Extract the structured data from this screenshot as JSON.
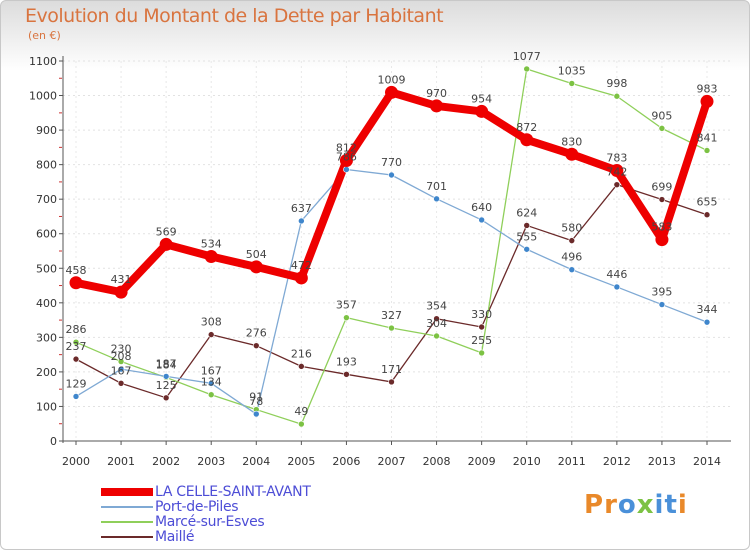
{
  "title": "Evolution du Montant de la Dette par Habitant",
  "unit": "(en €)",
  "logo": {
    "letters": [
      "P",
      "r",
      "o",
      "x",
      "i",
      "t",
      "i"
    ],
    "colors": [
      "#e9892a",
      "#e9892a",
      "#4a90d9",
      "#7cc243",
      "#4a90d9",
      "#4a90d9",
      "#e9892a"
    ]
  },
  "chart_data": {
    "type": "line",
    "title": "Evolution du Montant de la Dette par Habitant",
    "ylabel": "(en €)",
    "xlabel": "",
    "ylim": [
      0,
      1100
    ],
    "yticks": [
      0,
      100,
      200,
      300,
      400,
      500,
      600,
      700,
      800,
      900,
      1000,
      1100
    ],
    "categories": [
      "2000",
      "2001",
      "2002",
      "2003",
      "2004",
      "2005",
      "2006",
      "2007",
      "2008",
      "2009",
      "2010",
      "2011",
      "2012",
      "2013",
      "2014"
    ],
    "series": [
      {
        "name": "Maillé",
        "color": "#6b2a2a",
        "dot": "#6b2a2a",
        "values": [
          237,
          167,
          125,
          308,
          276,
          216,
          193,
          171,
          354,
          330,
          624,
          580,
          742,
          699,
          655
        ]
      },
      {
        "name": "Marcé-sur-Esves",
        "color": "#8fcf5a",
        "dot": "#7cc243",
        "values": [
          286,
          230,
          184,
          134,
          91,
          49,
          357,
          327,
          304,
          255,
          1077,
          1035,
          998,
          905,
          841
        ]
      },
      {
        "name": "Port-de-Piles",
        "color": "#7fa9d4",
        "dot": "#3f86cc",
        "values": [
          129,
          208,
          187,
          167,
          78,
          637,
          786,
          770,
          701,
          640,
          555,
          496,
          446,
          395,
          344
        ]
      },
      {
        "name": "LA CELLE-SAINT-AVANT",
        "color": "#ee0000",
        "dot": "#ee0000",
        "values": [
          458,
          431,
          569,
          534,
          504,
          472,
          812,
          1009,
          970,
          954,
          872,
          830,
          783,
          583,
          983
        ]
      }
    ],
    "legend": [
      {
        "name": "LA CELLE-SAINT-AVANT",
        "color": "#ee0000",
        "text_color": "#4d4dd6"
      },
      {
        "name": "Port-de-Piles",
        "color": "#7fa9d4",
        "text_color": "#4d4dd6"
      },
      {
        "name": "Marcé-sur-Esves",
        "color": "#8fcf5a",
        "text_color": "#4d4dd6"
      },
      {
        "name": "Maillé",
        "color": "#6b2a2a",
        "text_color": "#4d4dd6"
      }
    ]
  }
}
